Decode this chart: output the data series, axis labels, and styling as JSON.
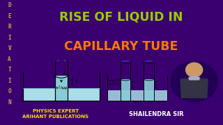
{
  "bg_color": "#3a006f",
  "title_line1": "RISE OF LIQUID IN",
  "title_line2": "CAPILLARY TUBE",
  "title_color1": "#99cc00",
  "title_color2": "#ff7700",
  "deriv_letters": [
    "D",
    "E",
    "R",
    "I",
    "V",
    "A",
    "T",
    "I",
    "O",
    "N"
  ],
  "deriv_color": "#ccaa44",
  "deriv_bg_top": "#3a006f",
  "deriv_bg_bottom": "#ffffff",
  "bottom_bg": "#3a006f",
  "bottom_text1": "PHYSICS EXPERT\nARIHANT PUBLICATIONS",
  "bottom_text2": "SHAILENDRA SIR",
  "bottom_color1": "#ffdd00",
  "bottom_color2": "#ffffff",
  "diagram_bg": "#ffffff",
  "diagram2_bg": "#f5d8e0",
  "liquid_color": "#aadde8",
  "liquid_color2": "#88ccd8",
  "tube_color": "#88ccd8",
  "arrow_color": "#3333aa",
  "figsize": [
    3.2,
    1.8
  ],
  "dpi": 100
}
